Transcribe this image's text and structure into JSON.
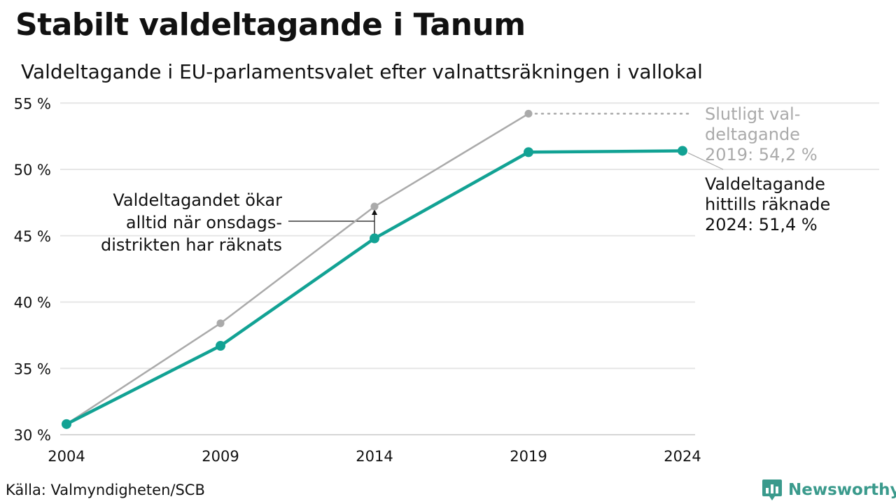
{
  "title": "Stabilt valdeltagande i Tanum",
  "subtitle": "Valdeltagande i EU-parlamentsvalet efter valnattsräkningen i vallokal",
  "source": "Källa: Valmyndigheten/SCB",
  "brand": {
    "name": "Newsworthy",
    "color": "#3a9a8c",
    "icon": "bar-chart-speech-bubble-icon"
  },
  "chart_data": {
    "type": "line",
    "x": [
      2004,
      2009,
      2014,
      2019,
      2024
    ],
    "x_tick_labels": [
      "2004",
      "2009",
      "2014",
      "2019",
      "2024"
    ],
    "ylim": [
      30,
      55
    ],
    "y_ticks": [
      30,
      35,
      40,
      45,
      50,
      55
    ],
    "y_tick_labels": [
      "30 %",
      "35 %",
      "40 %",
      "45 %",
      "50 %",
      "55 %"
    ],
    "grid": true,
    "series": [
      {
        "key": "final",
        "color": "#aaaaaa",
        "values": [
          30.8,
          38.4,
          47.2,
          54.2,
          null
        ]
      },
      {
        "key": "election_night",
        "color": "#12a294",
        "values": [
          30.8,
          36.7,
          44.8,
          51.3,
          51.4
        ]
      }
    ],
    "annotations": {
      "final_lines": [
        "Slutligt val-",
        "deltagande",
        "2019: 54,2 %"
      ],
      "final_color": "#aaaaaa",
      "night_lines": [
        "Valdeltagande",
        "hittills räknade",
        "2024: 51,4 %"
      ],
      "wednesday_lines": [
        "Valdeltagandet ökar",
        "alltid när onsdags-",
        "distrikten har räknats"
      ]
    }
  }
}
